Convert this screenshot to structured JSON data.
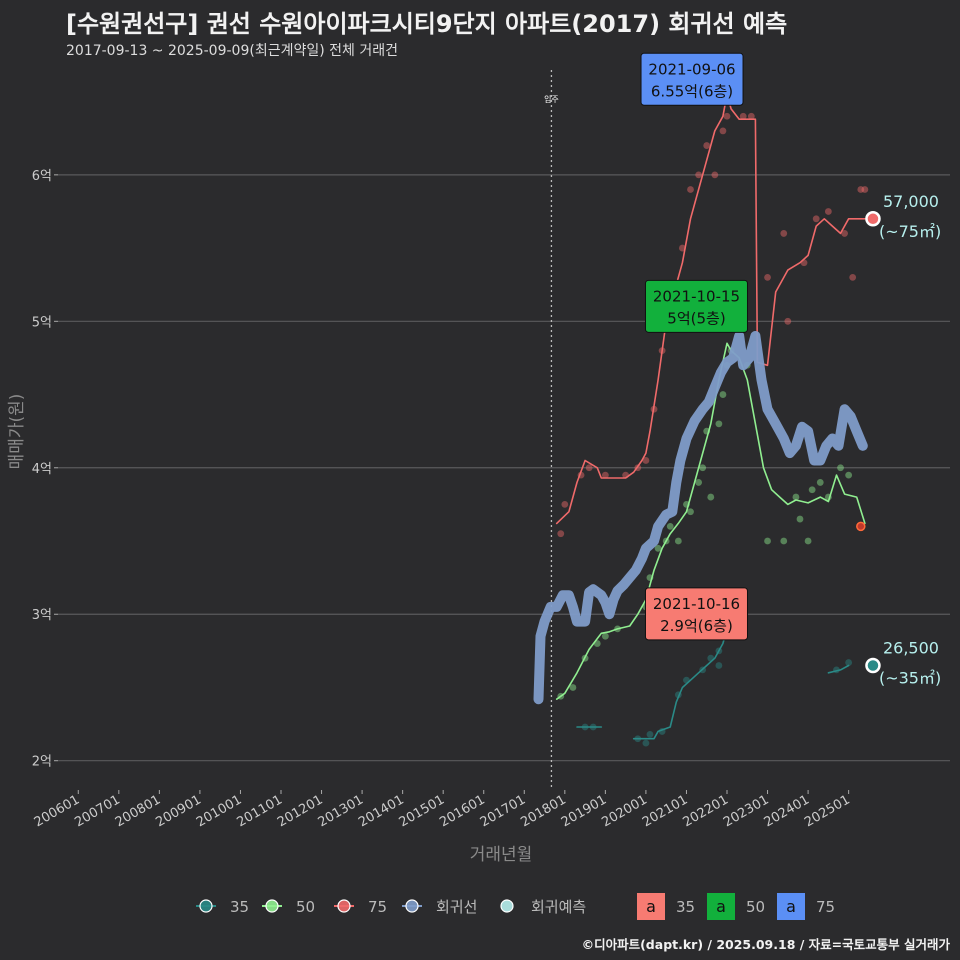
{
  "header": {
    "title": "[수원권선구] 권선 수원아이파크시티9단지 아파트(2017) 회귀선 예측",
    "subtitle": "2017-09-13 ~ 2025-09-09(최근계약일) 전체 거래건"
  },
  "footer": {
    "credit": "©디아파트(dapt.kr) / 2025.09.18 / 자료=국토교통부 실거래가"
  },
  "colors": {
    "s35": "#2a8a87",
    "s50": "#90ee90",
    "s75": "#f06a6a",
    "regression": "#7f9cc9",
    "forecast": "#b7f0ee",
    "label35": "#f77b72",
    "label50": "#12b03c",
    "label75": "#5b8ff5"
  },
  "chart_data": {
    "type": "line",
    "xlabel": "거래년월",
    "ylabel": "매매가(원)",
    "x_ticks": [
      "200601",
      "200701",
      "200801",
      "200901",
      "201001",
      "201101",
      "201201",
      "201301",
      "201401",
      "201501",
      "201601",
      "201701",
      "201801",
      "201901",
      "202001",
      "202101",
      "202201",
      "202301",
      "202401",
      "202501"
    ],
    "y_ticks": [
      {
        "value": 2,
        "label": "2억"
      },
      {
        "value": 3,
        "label": "3억"
      },
      {
        "value": 4,
        "label": "4억"
      },
      {
        "value": 5,
        "label": "5억"
      },
      {
        "value": 6,
        "label": "6억"
      }
    ],
    "xlim": [
      2005.5,
      2027.5
    ],
    "ylim": [
      1.8,
      6.75
    ],
    "move_in": {
      "x": 2017.67,
      "label": "입주"
    },
    "series": [
      {
        "name": "35",
        "key": "s35",
        "segments": [
          [
            [
              2018.3,
              2.23
            ],
            [
              2018.9,
              2.23
            ]
          ],
          [
            [
              2019.7,
              2.15
            ],
            [
              2020.2,
              2.15
            ],
            [
              2020.3,
              2.2
            ],
            [
              2020.6,
              2.23
            ],
            [
              2020.75,
              2.4
            ],
            [
              2020.9,
              2.5
            ],
            [
              2021.1,
              2.55
            ],
            [
              2021.3,
              2.6
            ],
            [
              2021.5,
              2.65
            ],
            [
              2021.7,
              2.7
            ],
            [
              2021.9,
              2.8
            ],
            [
              2022.0,
              2.9
            ]
          ],
          [
            [
              2024.5,
              2.6
            ],
            [
              2024.8,
              2.62
            ],
            [
              2025.0,
              2.65
            ]
          ]
        ],
        "points": [
          [
            2018.5,
            2.23
          ],
          [
            2018.7,
            2.23
          ],
          [
            2019.8,
            2.15
          ],
          [
            2020.0,
            2.12
          ],
          [
            2020.1,
            2.18
          ],
          [
            2020.4,
            2.2
          ],
          [
            2020.8,
            2.45
          ],
          [
            2021.0,
            2.55
          ],
          [
            2021.4,
            2.62
          ],
          [
            2021.6,
            2.7
          ],
          [
            2021.8,
            2.75
          ],
          [
            2021.8,
            2.65
          ],
          [
            2024.7,
            2.62
          ],
          [
            2025.0,
            2.67
          ]
        ]
      },
      {
        "name": "50",
        "key": "s50",
        "segments": [
          [
            [
              2017.8,
              2.42
            ],
            [
              2018.0,
              2.46
            ],
            [
              2018.3,
              2.6
            ],
            [
              2018.6,
              2.76
            ],
            [
              2018.9,
              2.87
            ],
            [
              2019.1,
              2.88
            ],
            [
              2019.3,
              2.9
            ],
            [
              2019.6,
              2.92
            ],
            [
              2019.8,
              3.0
            ],
            [
              2020.0,
              3.1
            ],
            [
              2020.2,
              3.3
            ],
            [
              2020.4,
              3.45
            ],
            [
              2020.6,
              3.55
            ],
            [
              2020.8,
              3.62
            ],
            [
              2021.0,
              3.7
            ],
            [
              2021.2,
              3.9
            ],
            [
              2021.4,
              4.1
            ],
            [
              2021.6,
              4.3
            ],
            [
              2021.8,
              4.6
            ],
            [
              2022.0,
              4.85
            ],
            [
              2022.1,
              4.8
            ],
            [
              2022.3,
              4.75
            ],
            [
              2022.5,
              4.6
            ],
            [
              2022.7,
              4.3
            ],
            [
              2022.9,
              4.0
            ],
            [
              2023.1,
              3.85
            ],
            [
              2023.3,
              3.8
            ],
            [
              2023.5,
              3.75
            ],
            [
              2023.7,
              3.78
            ],
            [
              2024.0,
              3.76
            ],
            [
              2024.3,
              3.8
            ],
            [
              2024.5,
              3.77
            ],
            [
              2024.7,
              3.95
            ],
            [
              2024.9,
              3.82
            ],
            [
              2025.2,
              3.8
            ],
            [
              2025.4,
              3.62
            ]
          ]
        ],
        "points": [
          [
            2017.9,
            2.44
          ],
          [
            2018.2,
            2.5
          ],
          [
            2018.5,
            2.7
          ],
          [
            2018.8,
            2.8
          ],
          [
            2019.0,
            2.85
          ],
          [
            2019.3,
            2.9
          ],
          [
            2020.0,
            3.05
          ],
          [
            2020.1,
            3.25
          ],
          [
            2020.3,
            3.45
          ],
          [
            2020.5,
            3.5
          ],
          [
            2020.6,
            3.6
          ],
          [
            2020.8,
            3.5
          ],
          [
            2021.0,
            3.75
          ],
          [
            2021.1,
            3.7
          ],
          [
            2021.3,
            3.9
          ],
          [
            2021.4,
            4.0
          ],
          [
            2021.5,
            4.25
          ],
          [
            2021.6,
            3.8
          ],
          [
            2021.8,
            4.3
          ],
          [
            2021.9,
            4.5
          ],
          [
            2022.0,
            4.7
          ],
          [
            2022.1,
            4.8
          ],
          [
            2022.2,
            5.0
          ],
          [
            2022.5,
            4.7
          ],
          [
            2023.0,
            3.5
          ],
          [
            2023.4,
            3.5
          ],
          [
            2023.7,
            3.8
          ],
          [
            2023.8,
            3.65
          ],
          [
            2024.0,
            3.5
          ],
          [
            2024.1,
            3.85
          ],
          [
            2024.3,
            3.9
          ],
          [
            2024.5,
            3.8
          ],
          [
            2024.8,
            4.0
          ],
          [
            2025.0,
            3.95
          ]
        ]
      },
      {
        "name": "75",
        "key": "s75",
        "segments": [
          [
            [
              2017.8,
              3.62
            ],
            [
              2018.1,
              3.7
            ],
            [
              2018.3,
              3.9
            ],
            [
              2018.5,
              4.05
            ],
            [
              2018.8,
              4.0
            ],
            [
              2018.9,
              3.93
            ],
            [
              2019.5,
              3.93
            ],
            [
              2019.7,
              3.97
            ],
            [
              2019.9,
              4.05
            ],
            [
              2020.0,
              4.1
            ],
            [
              2020.1,
              4.25
            ],
            [
              2020.3,
              4.6
            ],
            [
              2020.5,
              5.0
            ],
            [
              2020.7,
              5.2
            ],
            [
              2020.9,
              5.4
            ],
            [
              2021.1,
              5.7
            ],
            [
              2021.3,
              5.9
            ],
            [
              2021.5,
              6.1
            ],
            [
              2021.7,
              6.3
            ],
            [
              2021.9,
              6.4
            ],
            [
              2022.0,
              6.55
            ],
            [
              2022.1,
              6.45
            ],
            [
              2022.3,
              6.38
            ],
            [
              2022.5,
              6.38
            ],
            [
              2022.7,
              6.38
            ],
            [
              2022.75,
              4.72
            ],
            [
              2023.0,
              4.7
            ],
            [
              2023.2,
              5.2
            ],
            [
              2023.5,
              5.35
            ],
            [
              2023.8,
              5.4
            ],
            [
              2024.0,
              5.45
            ],
            [
              2024.2,
              5.65
            ],
            [
              2024.4,
              5.7
            ],
            [
              2024.6,
              5.65
            ],
            [
              2024.8,
              5.6
            ],
            [
              2025.0,
              5.7
            ],
            [
              2025.4,
              5.7
            ]
          ]
        ],
        "points": [
          [
            2017.9,
            3.55
          ],
          [
            2018.0,
            3.75
          ],
          [
            2018.4,
            3.95
          ],
          [
            2018.6,
            4.0
          ],
          [
            2019.0,
            3.95
          ],
          [
            2019.5,
            3.95
          ],
          [
            2019.8,
            4.0
          ],
          [
            2020.0,
            4.05
          ],
          [
            2020.2,
            4.4
          ],
          [
            2020.4,
            4.8
          ],
          [
            2020.6,
            5.2
          ],
          [
            2020.9,
            5.5
          ],
          [
            2021.1,
            5.9
          ],
          [
            2021.3,
            6.0
          ],
          [
            2021.5,
            6.2
          ],
          [
            2021.7,
            6.0
          ],
          [
            2021.9,
            6.3
          ],
          [
            2022.0,
            6.4
          ],
          [
            2022.4,
            6.4
          ],
          [
            2022.6,
            6.4
          ],
          [
            2023.0,
            5.3
          ],
          [
            2023.4,
            5.6
          ],
          [
            2023.5,
            5.0
          ],
          [
            2023.9,
            5.4
          ],
          [
            2024.2,
            5.7
          ],
          [
            2024.5,
            5.75
          ],
          [
            2024.9,
            5.6
          ],
          [
            2025.1,
            5.3
          ],
          [
            2025.3,
            5.9
          ],
          [
            2025.4,
            5.9
          ]
        ]
      },
      {
        "name": "회귀선",
        "key": "regression",
        "segments": [
          [
            [
              2017.35,
              2.42
            ],
            [
              2017.4,
              2.85
            ],
            [
              2017.5,
              2.95
            ],
            [
              2017.65,
              3.05
            ],
            [
              2017.8,
              3.05
            ],
            [
              2017.95,
              3.13
            ],
            [
              2018.1,
              3.13
            ],
            [
              2018.2,
              3.05
            ],
            [
              2018.3,
              2.95
            ],
            [
              2018.5,
              2.95
            ],
            [
              2018.6,
              3.15
            ],
            [
              2018.7,
              3.17
            ],
            [
              2018.9,
              3.13
            ],
            [
              2019.0,
              3.08
            ],
            [
              2019.1,
              3.0
            ],
            [
              2019.2,
              3.1
            ],
            [
              2019.3,
              3.16
            ],
            [
              2019.45,
              3.2
            ],
            [
              2019.6,
              3.25
            ],
            [
              2019.75,
              3.3
            ],
            [
              2019.9,
              3.38
            ],
            [
              2020.0,
              3.45
            ],
            [
              2020.2,
              3.5
            ],
            [
              2020.3,
              3.6
            ],
            [
              2020.5,
              3.68
            ],
            [
              2020.65,
              3.7
            ],
            [
              2020.75,
              3.9
            ],
            [
              2020.85,
              4.05
            ],
            [
              2021.0,
              4.2
            ],
            [
              2021.2,
              4.32
            ],
            [
              2021.4,
              4.4
            ],
            [
              2021.55,
              4.45
            ],
            [
              2021.7,
              4.55
            ],
            [
              2021.85,
              4.65
            ],
            [
              2022.0,
              4.72
            ],
            [
              2022.15,
              4.75
            ],
            [
              2022.3,
              4.9
            ],
            [
              2022.4,
              4.7
            ],
            [
              2022.55,
              4.75
            ],
            [
              2022.7,
              4.9
            ],
            [
              2022.85,
              4.6
            ],
            [
              2023.0,
              4.4
            ],
            [
              2023.2,
              4.3
            ],
            [
              2023.4,
              4.2
            ],
            [
              2023.55,
              4.1
            ],
            [
              2023.7,
              4.15
            ],
            [
              2023.85,
              4.28
            ],
            [
              2024.0,
              4.25
            ],
            [
              2024.15,
              4.05
            ],
            [
              2024.3,
              4.05
            ],
            [
              2024.45,
              4.15
            ],
            [
              2024.6,
              4.2
            ],
            [
              2024.75,
              4.15
            ],
            [
              2024.9,
              4.4
            ],
            [
              2025.05,
              4.35
            ],
            [
              2025.2,
              4.25
            ],
            [
              2025.35,
              4.15
            ]
          ]
        ],
        "points": []
      }
    ],
    "forecast_points": [
      {
        "x": 2025.6,
        "y": 5.7,
        "series": "s75",
        "value_label": "57,000",
        "area_label": "(~75㎡)"
      },
      {
        "x": 2025.6,
        "y": 2.65,
        "series": "s35",
        "value_label": "26,500",
        "area_label": "(~35㎡)"
      }
    ],
    "outlier_marker": {
      "x": 2025.3,
      "y": 3.6
    },
    "annotations": [
      {
        "x": 2021.68,
        "y": 6.55,
        "date": "2021-09-06",
        "price": "6.55억(6층)",
        "series": "label75"
      },
      {
        "x": 2021.79,
        "y": 5.0,
        "date": "2021-10-15",
        "price": "5억(5층)",
        "series": "label50"
      },
      {
        "x": 2021.79,
        "y": 2.9,
        "date": "2021-10-16",
        "price": "2.9억(6층)",
        "series": "label35"
      }
    ],
    "legend": {
      "position": "bottom",
      "line_items": [
        {
          "key": "s35",
          "label": "35"
        },
        {
          "key": "s50",
          "label": "50"
        },
        {
          "key": "s75",
          "label": "75"
        },
        {
          "key": "regression",
          "label": "회귀선"
        },
        {
          "key": "forecast",
          "label": "회귀예측"
        }
      ],
      "label_items": [
        {
          "key": "label35",
          "glyph": "a",
          "label": "35"
        },
        {
          "key": "label50",
          "glyph": "a",
          "label": "50"
        },
        {
          "key": "label75",
          "glyph": "a",
          "label": "75"
        }
      ]
    }
  }
}
